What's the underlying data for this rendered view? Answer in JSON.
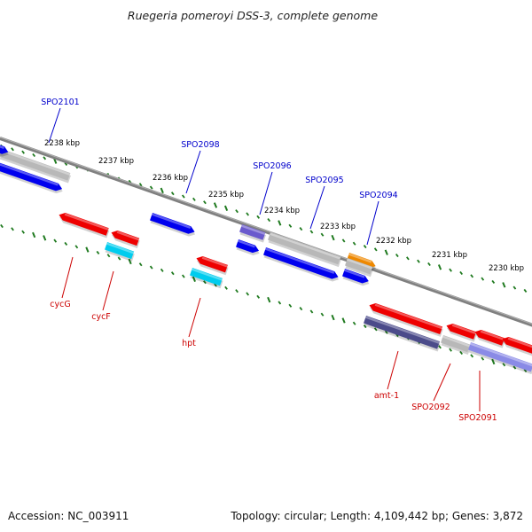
{
  "title": "Ruegeria pomeroyi DSS-3, complete genome",
  "footer": {
    "accession": "Accession: NC_003911",
    "summary": "Topology: circular; Length: 4,109,442 bp; Genes: 3,872"
  },
  "scale": {
    "unit": "kbp",
    "ticks": [
      "2238 kbp",
      "2237 kbp",
      "2236 kbp",
      "2235 kbp",
      "2234 kbp",
      "2233 kbp",
      "2232 kbp",
      "2231 kbp",
      "2230 kbp"
    ]
  },
  "colors": {
    "forward_label": "#0000cc",
    "reverse_label": "#cc0000",
    "backbone": "#808080",
    "tick_green": "#1f7a1f",
    "blue": "#0000ee",
    "red": "#ee0000",
    "cyan": "#00ccee",
    "gray": "#b8b8b8",
    "orange": "#ee8800",
    "slate": "#6a5acd",
    "darkslate": "#4b4b8a",
    "lavender": "#8a8ae6"
  },
  "forward_labels": [
    "SPO2101",
    "SPO2098",
    "SPO2096",
    "SPO2095",
    "SPO2094"
  ],
  "reverse_labels": [
    "cycG",
    "cycF",
    "hpt",
    "amt-1",
    "SPO2092",
    "SPO2091"
  ]
}
